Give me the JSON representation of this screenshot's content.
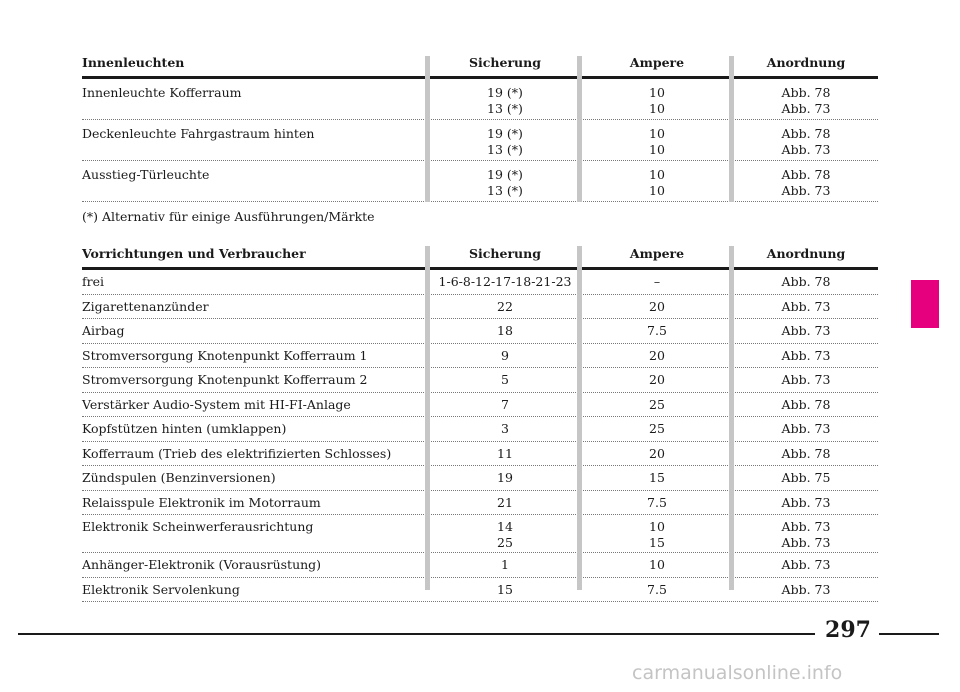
{
  "table1": {
    "headers": {
      "name": "Innenleuchten",
      "fuse": "Sicherung",
      "amp": "Ampere",
      "loc": "Anordnung"
    },
    "rows": [
      {
        "name": "Innenleuchte Kofferraum",
        "fuse": [
          "19 (*)",
          "13 (*)"
        ],
        "amp": [
          "10",
          "10"
        ],
        "loc": [
          "Abb. 78",
          "Abb. 73"
        ]
      },
      {
        "name": "Deckenleuchte Fahrgastraum hinten",
        "fuse": [
          "19 (*)",
          "13 (*)"
        ],
        "amp": [
          "10",
          "10"
        ],
        "loc": [
          "Abb. 78",
          "Abb. 73"
        ]
      },
      {
        "name": "Ausstieg-Türleuchte",
        "fuse": [
          "19 (*)",
          "13 (*)"
        ],
        "amp": [
          "10",
          "10"
        ],
        "loc": [
          "Abb. 78",
          "Abb. 73"
        ]
      }
    ]
  },
  "footnote": "(*) Alternativ für einige Ausführungen/Märkte",
  "table2": {
    "headers": {
      "name": "Vorrichtungen und Verbraucher",
      "fuse": "Sicherung",
      "amp": "Ampere",
      "loc": "Anordnung"
    },
    "rows": [
      {
        "name": "frei",
        "fuse": [
          "1-6-8-12-17-18-21-23"
        ],
        "amp": [
          "–"
        ],
        "loc": [
          "Abb. 78"
        ]
      },
      {
        "name": "Zigarettenanzünder",
        "fuse": [
          "22"
        ],
        "amp": [
          "20"
        ],
        "loc": [
          "Abb. 73"
        ]
      },
      {
        "name": "Airbag",
        "fuse": [
          "18"
        ],
        "amp": [
          "7.5"
        ],
        "loc": [
          "Abb. 73"
        ]
      },
      {
        "name": "Stromversorgung Knotenpunkt Kofferraum 1",
        "fuse": [
          "9"
        ],
        "amp": [
          "20"
        ],
        "loc": [
          "Abb. 73"
        ]
      },
      {
        "name": "Stromversorgung Knotenpunkt Kofferraum 2",
        "fuse": [
          "5"
        ],
        "amp": [
          "20"
        ],
        "loc": [
          "Abb. 73"
        ]
      },
      {
        "name": "Verstärker Audio-System mit HI-FI-Anlage",
        "fuse": [
          "7"
        ],
        "amp": [
          "25"
        ],
        "loc": [
          "Abb. 78"
        ]
      },
      {
        "name": "Kopfstützen hinten (umklappen)",
        "fuse": [
          "3"
        ],
        "amp": [
          "25"
        ],
        "loc": [
          "Abb. 73"
        ]
      },
      {
        "name": "Kofferraum (Trieb des elektrifizierten Schlosses)",
        "fuse": [
          "11"
        ],
        "amp": [
          "20"
        ],
        "loc": [
          "Abb. 78"
        ]
      },
      {
        "name": "Zündspulen (Benzinversionen)",
        "fuse": [
          "19"
        ],
        "amp": [
          "15"
        ],
        "loc": [
          "Abb. 75"
        ]
      },
      {
        "name": "Relaisspule Elektronik im Motorraum",
        "fuse": [
          "21"
        ],
        "amp": [
          "7.5"
        ],
        "loc": [
          "Abb. 73"
        ]
      },
      {
        "name": "Elektronik Scheinwerferausrichtung",
        "fuse": [
          "14",
          "25"
        ],
        "amp": [
          "10",
          "15"
        ],
        "loc": [
          "Abb. 73",
          "Abb. 73"
        ]
      },
      {
        "name": "Anhänger-Elektronik (Vorausrüstung)",
        "fuse": [
          "1"
        ],
        "amp": [
          "10"
        ],
        "loc": [
          "Abb. 73"
        ]
      },
      {
        "name": "Elektronik Servolenkung",
        "fuse": [
          "15"
        ],
        "amp": [
          "7.5"
        ],
        "loc": [
          "Abb. 73"
        ]
      }
    ]
  },
  "page_number": "297",
  "watermark": "carmanualsonline.info",
  "colors": {
    "tab_marker": "#e6007e",
    "separator": "#c6c6c6"
  }
}
